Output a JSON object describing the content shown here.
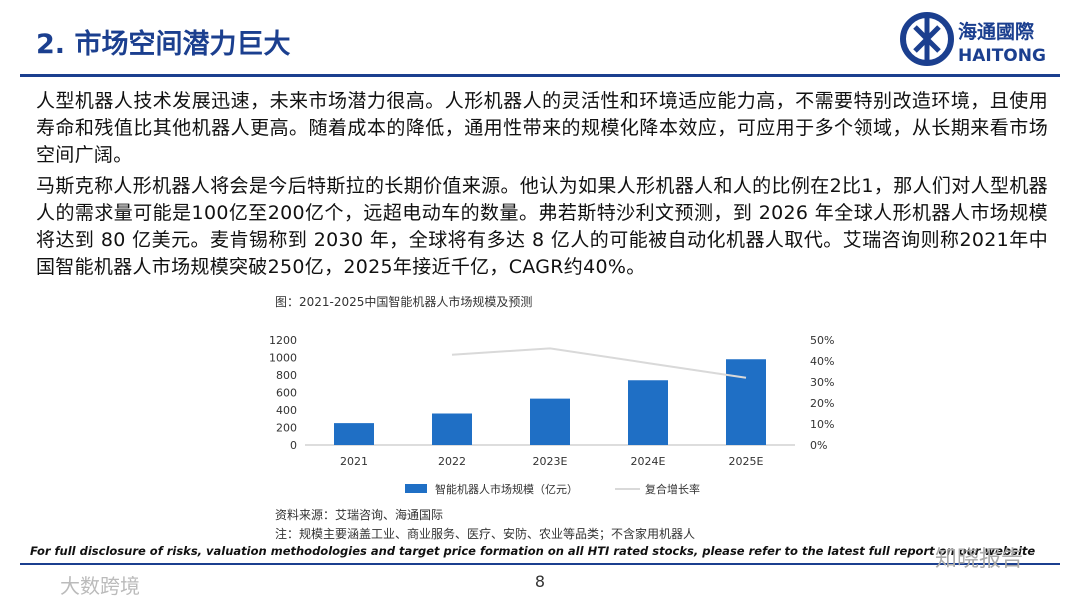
{
  "header": {
    "title": "2. 市场空间潜力巨大",
    "logo_cn": "海通國際",
    "logo_en": "HAITONG"
  },
  "paragraphs": [
    "人型机器人技术发展迅速，未来市场潜力很高。人形机器人的灵活性和环境适应能力高，不需要特别改造环境，且使用寿命和残值比其他机器人更高。随着成本的降低，通用性带来的规模化降本效应，可应用于多个领域，从长期来看市场空间广阔。",
    "马斯克称人形机器人将会是今后特斯拉的长期价值来源。他认为如果人形机器人和人的比例在2比1，那人们对人型机器人的需求量可能是100亿至200亿个，远超电动车的数量。弗若斯特沙利文预测，到 2026 年全球人形机器人市场规模将达到 80 亿美元。麦肯锡称到 2030 年，全球将有多达 8 亿人的可能被自动化机器人取代。艾瑞咨询则称2021年中国智能机器人市场规模突破250亿，2025年接近千亿，CAGR约40%。"
  ],
  "chart_data": {
    "type": "bar",
    "title": "图：2021-2025中国智能机器人市场规模及预测",
    "categories": [
      "2021",
      "2022",
      "2023E",
      "2024E",
      "2025E"
    ],
    "series": [
      {
        "name": "智能机器人市场规模（亿元）",
        "color": "#1f6fc5",
        "type": "bar",
        "values": [
          250,
          360,
          530,
          740,
          980
        ]
      },
      {
        "name": "复合增长率",
        "color": "#d9d9d9",
        "type": "line",
        "axis": "y2",
        "values": [
          null,
          43,
          46,
          39,
          32
        ]
      }
    ],
    "ylim": [
      0,
      1200
    ],
    "yticks": [
      0,
      200,
      400,
      600,
      800,
      1000,
      1200
    ],
    "y2lim": [
      0,
      50
    ],
    "y2ticks": [
      {
        "value": 0,
        "label": "0%"
      },
      {
        "value": 10,
        "label": "10%"
      },
      {
        "value": 20,
        "label": "20%"
      },
      {
        "value": 30,
        "label": "30%"
      },
      {
        "value": 40,
        "label": "40%"
      },
      {
        "value": 50,
        "label": "50%"
      }
    ]
  },
  "sources": [
    "资料来源：艾瑞咨询、海通国际",
    "注：规模主要涵盖工业、商业服务、医疗、安防、农业等品类；不含家用机器人"
  ],
  "footer": {
    "disclaimer": "For full disclosure of risks, valuation methodologies and target price formation on all HTI rated stocks, please refer to the latest full report on our website",
    "page": "8"
  },
  "watermarks": [
    "大数跨境",
    "知晓报告"
  ]
}
